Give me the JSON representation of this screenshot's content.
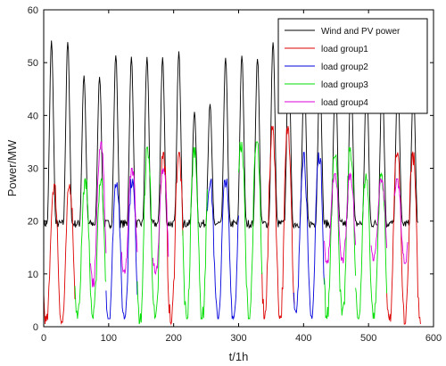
{
  "chart_data": {
    "type": "line",
    "title": "",
    "xlabel": "t/1h",
    "ylabel": "Power/MW",
    "xlim": [
      0,
      600
    ],
    "ylim": [
      0,
      60
    ],
    "xticks": [
      0,
      100,
      200,
      300,
      400,
      500,
      600
    ],
    "yticks": [
      0,
      10,
      20,
      30,
      40,
      50,
      60
    ],
    "grid": false,
    "legend_position": "top-right",
    "series": [
      {
        "name": "Wind and PV power",
        "color": "#000000",
        "profile": "daily-peaks",
        "baseline": 19.5,
        "period_hours": 24,
        "peak_hours": [
          12,
          37,
          62,
          86,
          111,
          135,
          159,
          183,
          208,
          232,
          256,
          280,
          305,
          329,
          353,
          377,
          401,
          425,
          449,
          473,
          497,
          521,
          545,
          569
        ],
        "peak_values": [
          54,
          54,
          47.5,
          47.5,
          51.5,
          51,
          51,
          51,
          52,
          40.5,
          42,
          51,
          51.5,
          51,
          54,
          51,
          48,
          47.5,
          47.5,
          47,
          47.5,
          47.5,
          47.5,
          45
        ]
      },
      {
        "name": "load group1",
        "color": "#dd0000",
        "profile": "segments",
        "segments": [
          {
            "start": 0,
            "end": 48,
            "minimum": 0.5,
            "maximum": 27
          },
          {
            "start": 180,
            "end": 214,
            "minimum": 0.5,
            "maximum": 33
          },
          {
            "start": 336,
            "end": 386,
            "minimum": 1.5,
            "maximum": 38
          },
          {
            "start": 528,
            "end": 580,
            "minimum": 0.5,
            "maximum": 33
          }
        ]
      },
      {
        "name": "load group2",
        "color": "#0000dd",
        "profile": "segments",
        "segments": [
          {
            "start": 96,
            "end": 144,
            "minimum": 1.5,
            "maximum": 28
          },
          {
            "start": 252,
            "end": 300,
            "minimum": 1.5,
            "maximum": 28
          },
          {
            "start": 384,
            "end": 432,
            "minimum": 1.5,
            "maximum": 33
          }
        ]
      },
      {
        "name": "load group3",
        "color": "#00dd00",
        "profile": "segments",
        "segments": [
          {
            "start": 48,
            "end": 96,
            "minimum": 1.5,
            "maximum": 28
          },
          {
            "start": 144,
            "end": 180,
            "minimum": 0.5,
            "maximum": 34
          },
          {
            "start": 214,
            "end": 252,
            "minimum": 1.5,
            "maximum": 34
          },
          {
            "start": 300,
            "end": 336,
            "minimum": 1.5,
            "maximum": 35
          },
          {
            "start": 432,
            "end": 480,
            "minimum": 1.5,
            "maximum": 34
          },
          {
            "start": 480,
            "end": 528,
            "minimum": 1.5,
            "maximum": 29
          }
        ]
      },
      {
        "name": "load group4",
        "color": "#dd00dd",
        "profile": "segments",
        "segments": [
          {
            "start": 72,
            "end": 96,
            "minimum": 7.5,
            "maximum": 35
          },
          {
            "start": 120,
            "end": 144,
            "minimum": 9.5,
            "maximum": 30
          },
          {
            "start": 168,
            "end": 192,
            "minimum": 10,
            "maximum": 30
          },
          {
            "start": 432,
            "end": 480,
            "minimum": 12,
            "maximum": 29
          },
          {
            "start": 504,
            "end": 528,
            "minimum": 12.5,
            "maximum": 28
          },
          {
            "start": 540,
            "end": 560,
            "minimum": 12,
            "maximum": 28
          }
        ]
      }
    ]
  }
}
